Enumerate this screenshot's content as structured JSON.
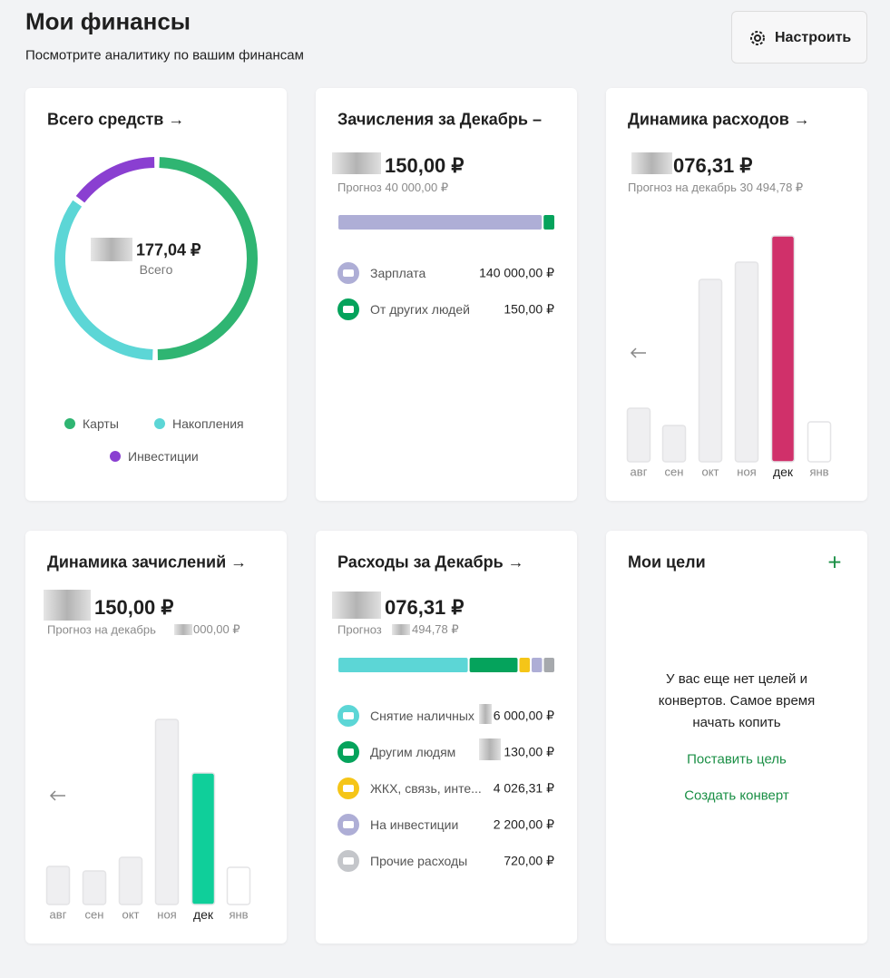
{
  "header": {
    "title": "Мои финансы",
    "subtitle": "Посмотрите аналитику по вашим финансам",
    "button": "Настроить"
  },
  "total_funds": {
    "title": "Всего средств →",
    "amount": "177,04 ₽",
    "amount_caption": "Всего",
    "legend": [
      {
        "name": "Карты",
        "color": "#2fb572",
        "value": 50
      },
      {
        "name": "Накопления",
        "color": "#5cd6d6",
        "value": 35
      },
      {
        "name": "Инвестиции",
        "color": "#8a3fd1",
        "value": 15
      }
    ]
  },
  "income": {
    "title": "Зачисления за Декабрь –",
    "amount": "150,00 ₽",
    "forecast": "Прогноз 40 000,00 ₽",
    "bar": [
      {
        "color": "#aeaed6",
        "value": 95
      },
      {
        "color": "#05a35c",
        "value": 5
      }
    ],
    "items": [
      {
        "name": "Зарплата",
        "value": "140 000,00 ₽",
        "color": "#aeaed6"
      },
      {
        "name": "От других людей",
        "value": "150,00 ₽",
        "color": "#05a35c"
      }
    ]
  },
  "expense_dynamics": {
    "title": "Динамика расходов →",
    "amount": "076,31 ₽",
    "forecast": "Прогноз на декабрь 30 494,78 ₽",
    "categories": [
      "авг",
      "сен",
      "окт",
      "ноя",
      "дек",
      "янв"
    ],
    "values": [
      59,
      40,
      201,
      220,
      249,
      44
    ],
    "colors": [
      "#efeff1",
      "#efeff1",
      "#efeff1",
      "#efeff1",
      "#d0306a",
      "#ffffff"
    ]
  },
  "income_dynamics": {
    "title": "Динамика зачислений →",
    "amount": "150,00 ₽",
    "forecast": "Прогноз на декабрь",
    "forecast_value": "000,00 ₽",
    "categories": [
      "авг",
      "сен",
      "окт",
      "ноя",
      "дек",
      "янв"
    ],
    "values": [
      42,
      37,
      52,
      204,
      145,
      41
    ],
    "colors": [
      "#efeff1",
      "#efeff1",
      "#efeff1",
      "#efeff1",
      "#0fcf9a",
      "#ffffff"
    ]
  },
  "expenses": {
    "title": "Расходы за Декабрь →",
    "amount": "076,31 ₽",
    "forecast": "Прогноз",
    "forecast_value": "494,78 ₽",
    "bar": [
      {
        "color": "#5cd6d6",
        "value": 62
      },
      {
        "color": "#05a35c",
        "value": 23
      },
      {
        "color": "#f5c518",
        "value": 5
      },
      {
        "color": "#aeaed6",
        "value": 5
      },
      {
        "color": "#a6a9ad",
        "value": 5
      }
    ],
    "items": [
      {
        "name": "Снятие наличных",
        "value": "6 000,00 ₽",
        "color": "#5cd6d6"
      },
      {
        "name": "Другим людям",
        "value": "130,00 ₽",
        "color": "#05a35c"
      },
      {
        "name": "ЖКХ, связь, инте...",
        "value": "4 026,31 ₽",
        "color": "#f5c518"
      },
      {
        "name": "На инвестиции",
        "value": "2 200,00 ₽",
        "color": "#aeaed6"
      },
      {
        "name": "Прочие расходы",
        "value": "720,00 ₽",
        "color": "#c4c6ca"
      }
    ]
  },
  "goals": {
    "title": "Мои цели",
    "add": "+",
    "message": "У вас еще нет целей и конвертов. Самое время начать копить",
    "link_goal": "Поставить цель",
    "link_envelope": "Создать конверт"
  }
}
